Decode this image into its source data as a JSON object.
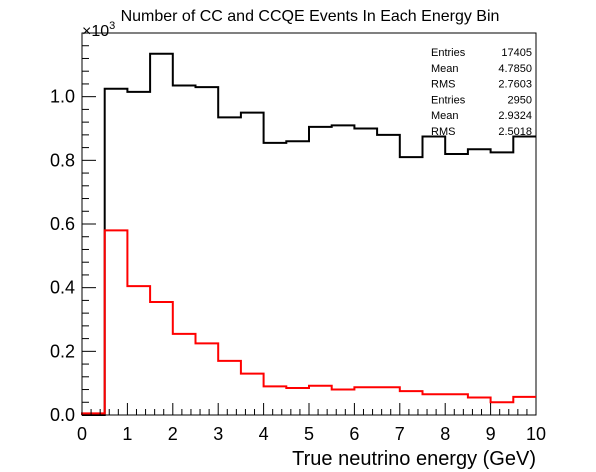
{
  "chart_data": {
    "type": "histogram",
    "title": "Number of CC and CCQE Events In Each Energy Bin",
    "xlabel": "True neutrino energy (GeV)",
    "ylabel": "",
    "y_multiplier_label": "×10",
    "y_multiplier_exponent": "3",
    "xlim": [
      0,
      10
    ],
    "ylim": [
      0,
      1.2
    ],
    "x_ticks": [
      "0",
      "1",
      "2",
      "3",
      "4",
      "5",
      "6",
      "7",
      "8",
      "9",
      "10"
    ],
    "y_ticks": [
      "0.0",
      "0.2",
      "0.4",
      "0.6",
      "0.8",
      "1.0"
    ],
    "bin_edges": [
      0,
      0.5,
      1,
      1.5,
      2,
      2.5,
      3,
      3.5,
      4,
      4.5,
      5,
      5.5,
      6,
      6.5,
      7,
      7.5,
      8,
      8.5,
      9,
      9.5,
      10
    ],
    "series": [
      {
        "color": "#000000",
        "values": [
          0.0,
          1.025,
          1.015,
          1.135,
          1.035,
          1.03,
          0.935,
          0.95,
          0.855,
          0.86,
          0.905,
          0.91,
          0.9,
          0.88,
          0.81,
          0.875,
          0.82,
          0.835,
          0.825,
          0.875
        ],
        "stats": [
          {
            "label": "Entries",
            "value": "17405"
          },
          {
            "label": "Mean",
            "value": "4.7850"
          },
          {
            "label": "RMS",
            "value": "2.7603"
          }
        ]
      },
      {
        "color": "#ff0000",
        "values": [
          0.005,
          0.58,
          0.405,
          0.355,
          0.255,
          0.225,
          0.17,
          0.13,
          0.09,
          0.085,
          0.092,
          0.08,
          0.087,
          0.087,
          0.075,
          0.065,
          0.065,
          0.055,
          0.04,
          0.057
        ],
        "stats": [
          {
            "label": "Entries",
            "value": "2950"
          },
          {
            "label": "Mean",
            "value": "2.9324"
          },
          {
            "label": "RMS",
            "value": "2.5018"
          }
        ]
      }
    ]
  }
}
